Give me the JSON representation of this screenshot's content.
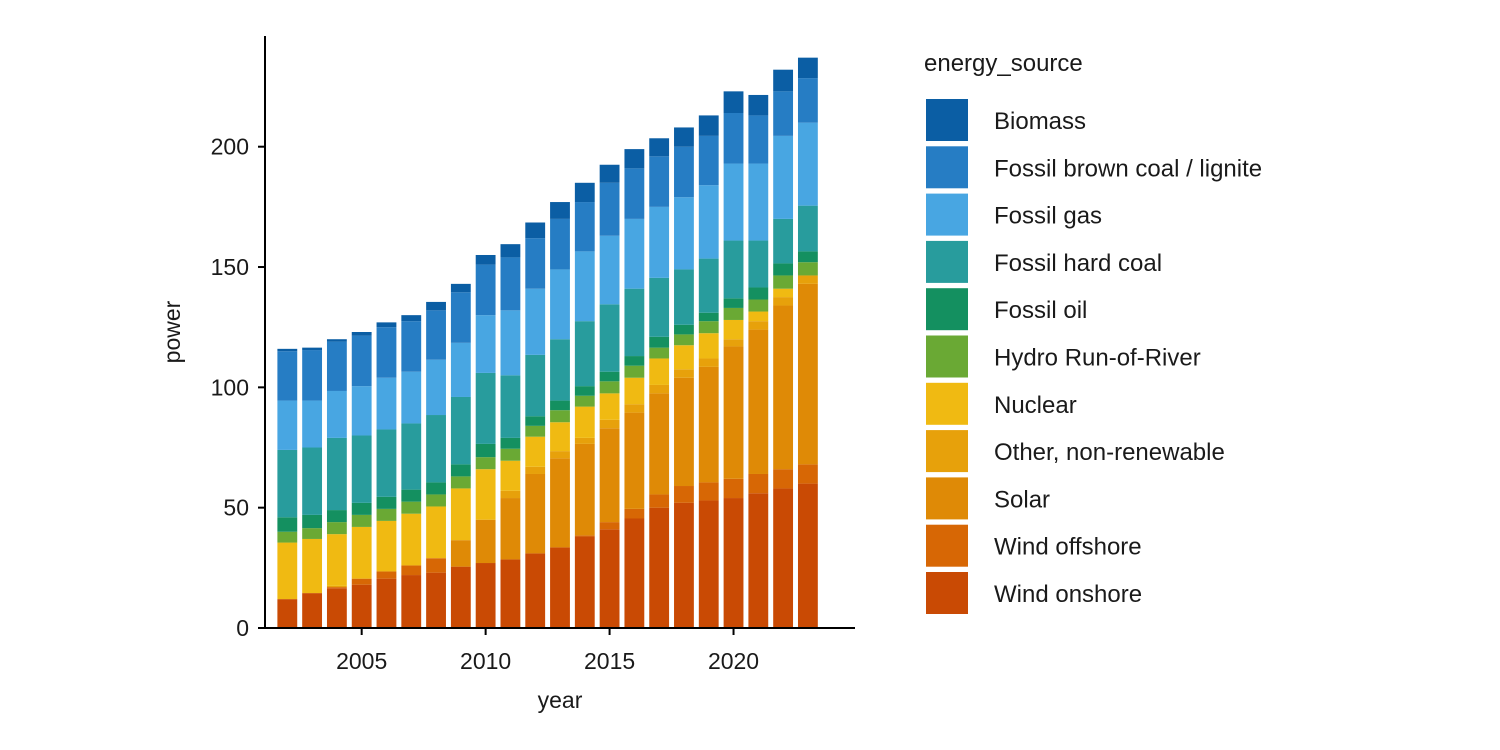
{
  "chart_data": {
    "type": "bar",
    "stacked": true,
    "xlabel": "year",
    "ylabel": "power",
    "xlim": [
      2001.1,
      2024.9
    ],
    "ylim": [
      0,
      246
    ],
    "x_ticks": [
      2005,
      2010,
      2015,
      2020
    ],
    "y_ticks": [
      0,
      50,
      100,
      150,
      200
    ],
    "grid": false,
    "legend": {
      "title": "energy_source",
      "position": "right"
    },
    "x": [
      2002,
      2003,
      2004,
      2005,
      2006,
      2007,
      2008,
      2009,
      2010,
      2011,
      2012,
      2013,
      2014,
      2015,
      2016,
      2017,
      2018,
      2019,
      2020,
      2021,
      2022,
      2023
    ],
    "series": [
      {
        "name": "Wind onshore",
        "color": "#c94a04",
        "values": [
          12,
          14.5,
          16.5,
          18,
          20.5,
          22,
          23,
          25.5,
          27,
          28.5,
          31,
          33.5,
          38,
          41,
          45.5,
          50,
          52,
          53,
          54,
          56,
          58,
          60
        ]
      },
      {
        "name": "Wind offshore",
        "color": "#d76705",
        "values": [
          0,
          0,
          0.5,
          2.5,
          3,
          4,
          6,
          0,
          0,
          0,
          0,
          0,
          0.5,
          3,
          4,
          5.5,
          7,
          7.5,
          8,
          8,
          8,
          8
        ]
      },
      {
        "name": "Solar",
        "color": "#df8a06",
        "values": [
          0,
          0,
          0,
          0,
          0,
          0,
          0,
          11,
          18,
          25.5,
          33,
          37,
          38,
          39,
          40,
          42,
          45,
          48,
          55,
          60,
          68,
          75
        ]
      },
      {
        "name": "Other, non-renewable",
        "color": "#e7a10b",
        "values": [
          0,
          0,
          0.5,
          0,
          0,
          0,
          0,
          0,
          0,
          3,
          3,
          3,
          2.5,
          3.5,
          3.5,
          3.5,
          3.5,
          3.5,
          3,
          3.5,
          3.5,
          3.5
        ]
      },
      {
        "name": "Nuclear",
        "color": "#f0ba12",
        "values": [
          23.5,
          22.5,
          21.5,
          21.5,
          21,
          21.5,
          21.5,
          21.5,
          21,
          12.5,
          12.5,
          12,
          13,
          11,
          11,
          11,
          10,
          10.5,
          8,
          4,
          3.5,
          0
        ]
      },
      {
        "name": "Hydro Run-of-River",
        "color": "#6aa934",
        "values": [
          4.5,
          4.5,
          5,
          5,
          5,
          5,
          5,
          5,
          5,
          5,
          4.5,
          5,
          4.5,
          5,
          5,
          4.5,
          4.5,
          5,
          5,
          5,
          5.5,
          5.5
        ]
      },
      {
        "name": "Fossil oil",
        "color": "#149060",
        "values": [
          6,
          5.5,
          5,
          5,
          5,
          5,
          5,
          5,
          5.5,
          4.5,
          4,
          4,
          4,
          4,
          4,
          4.5,
          4,
          3.5,
          4,
          5,
          5,
          4.5
        ]
      },
      {
        "name": "Fossil hard coal",
        "color": "#289c9d",
        "values": [
          28,
          28,
          30,
          28,
          28,
          27.5,
          28,
          28,
          29.5,
          26,
          25.5,
          25.5,
          27,
          28,
          28,
          24.5,
          23,
          22.5,
          24,
          19.5,
          18.5,
          19
        ]
      },
      {
        "name": "Fossil gas",
        "color": "#48a6e2",
        "values": [
          20.5,
          19.5,
          19.5,
          20.5,
          21.5,
          21.5,
          23,
          22.5,
          24,
          27,
          27.5,
          29,
          29,
          28.5,
          29,
          29.5,
          30,
          30.5,
          32,
          32,
          34.5,
          34.5
        ]
      },
      {
        "name": "Fossil brown coal / lignite",
        "color": "#267dc4",
        "values": [
          20.5,
          21,
          20.5,
          21,
          21,
          21,
          20.5,
          21,
          21,
          22,
          21,
          21,
          20.5,
          22,
          21,
          21,
          21,
          20.5,
          21,
          20,
          18.5,
          18.5
        ]
      },
      {
        "name": "Biomass",
        "color": "#0b5ea4",
        "values": [
          1,
          1,
          1,
          1.5,
          2,
          2.5,
          3.5,
          3.5,
          4,
          5.5,
          6.5,
          7,
          8,
          7.5,
          8,
          7.5,
          8,
          8.5,
          9,
          8.5,
          9,
          8.5
        ]
      }
    ]
  }
}
